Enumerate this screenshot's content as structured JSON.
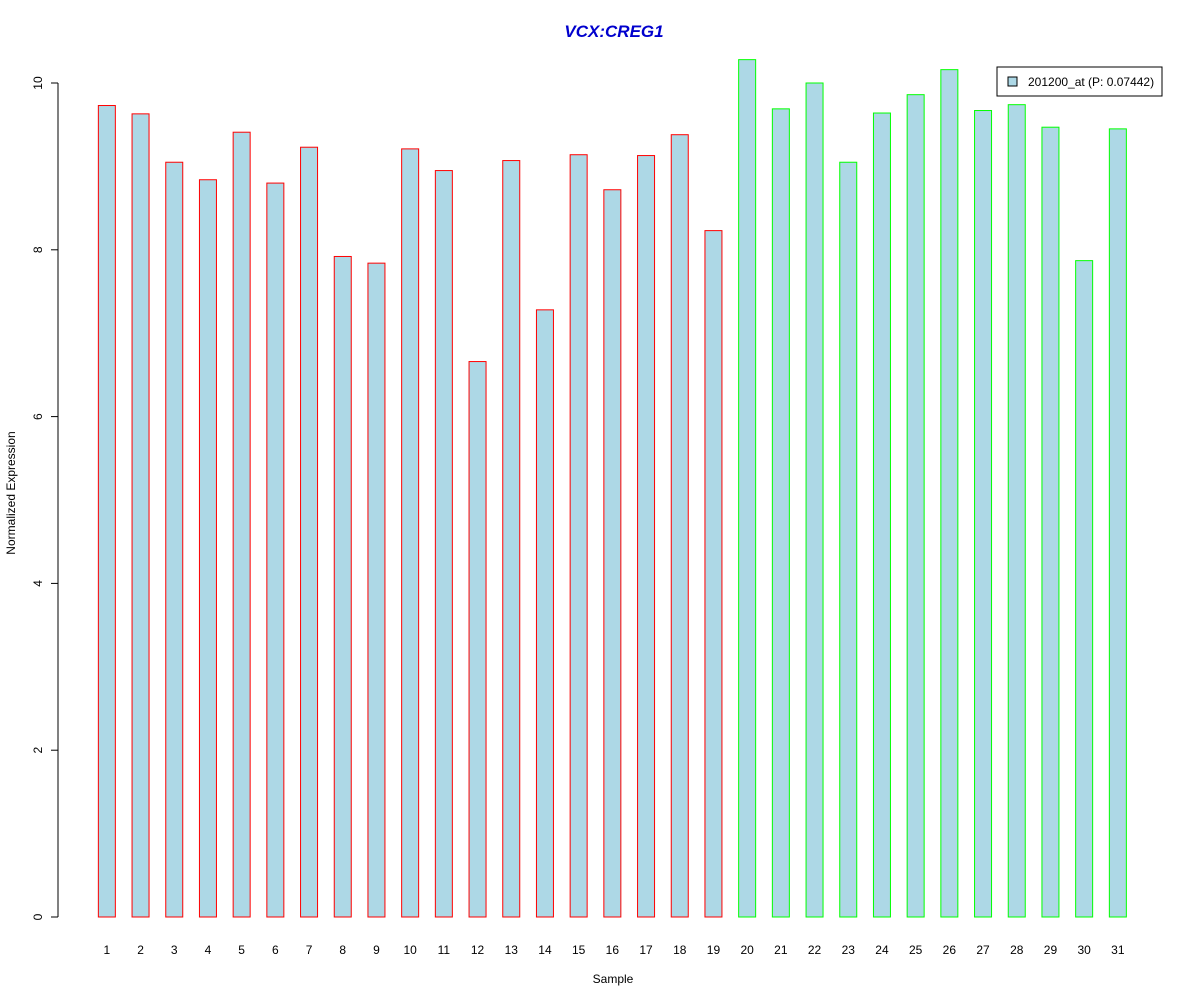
{
  "chart_data": {
    "type": "bar",
    "title": "VCX:CREG1",
    "xlabel": "Sample",
    "ylabel": "Normalized Expression",
    "ylim": [
      0,
      10.4
    ],
    "yticks": [
      "0",
      "2",
      "4",
      "6",
      "8",
      "10"
    ],
    "ytick_values": [
      0,
      2,
      4,
      6,
      8,
      10
    ],
    "categories": [
      "1",
      "2",
      "3",
      "4",
      "5",
      "6",
      "7",
      "8",
      "9",
      "10",
      "11",
      "12",
      "13",
      "14",
      "15",
      "16",
      "17",
      "18",
      "19",
      "20",
      "21",
      "22",
      "23",
      "24",
      "25",
      "26",
      "27",
      "28",
      "29",
      "30",
      "31"
    ],
    "series": [
      {
        "name": "201200_at (P: 0.07442)",
        "values": [
          9.73,
          9.63,
          9.05,
          8.84,
          9.41,
          8.8,
          9.23,
          7.92,
          7.84,
          9.21,
          8.95,
          6.66,
          9.07,
          7.28,
          9.14,
          8.72,
          9.13,
          9.38,
          8.23,
          10.28,
          9.69,
          10.0,
          9.05,
          9.64,
          9.86,
          10.16,
          9.67,
          9.74,
          9.47,
          7.87,
          9.45
        ],
        "fill_color": "#ADD8E6"
      }
    ],
    "border_colors": [
      "#FF0000",
      "#FF0000",
      "#FF0000",
      "#FF0000",
      "#FF0000",
      "#FF0000",
      "#FF0000",
      "#FF0000",
      "#FF0000",
      "#FF0000",
      "#FF0000",
      "#FF0000",
      "#FF0000",
      "#FF0000",
      "#FF0000",
      "#FF0000",
      "#FF0000",
      "#FF0000",
      "#FF0000",
      "#00FF00",
      "#00FF00",
      "#00FF00",
      "#00FF00",
      "#00FF00",
      "#00FF00",
      "#00FF00",
      "#00FF00",
      "#00FF00",
      "#00FF00",
      "#00FF00",
      "#00FF00"
    ],
    "title_color": "#0000CD",
    "legend": {
      "label": "201200_at (P: 0.07442)",
      "swatch_color": "#ADD8E6",
      "position": "top-right"
    },
    "grid": false
  }
}
